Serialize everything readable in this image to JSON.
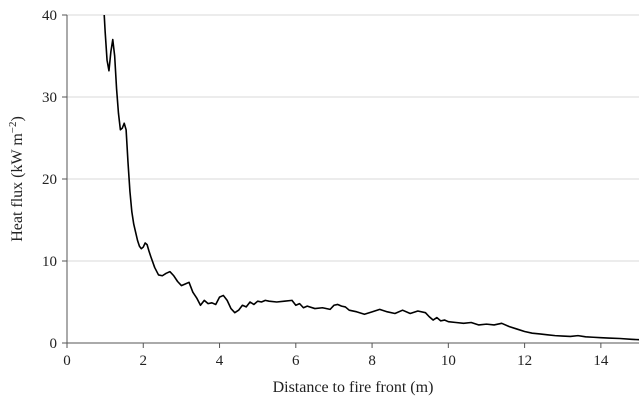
{
  "chart_data": {
    "type": "line",
    "xlabel": "Distance to fire front (m)",
    "ylabel": {
      "text": "Heat flux (kW m",
      "superscript": "−2",
      "close": ")"
    },
    "xlim": [
      0,
      15
    ],
    "ylim": [
      0,
      40
    ],
    "xticks": [
      0,
      2,
      4,
      6,
      8,
      10,
      12,
      14
    ],
    "yticks": [
      0,
      10,
      20,
      30,
      40
    ],
    "grid": "horizontal",
    "legend": "none",
    "colors": {
      "line": "#000000",
      "grid": "#d9d9d9",
      "axis": "#555555"
    },
    "series": [
      {
        "x": [
          0.97,
          1.0,
          1.05,
          1.1,
          1.15,
          1.2,
          1.25,
          1.3,
          1.35,
          1.4,
          1.45,
          1.5,
          1.55,
          1.6,
          1.65,
          1.7,
          1.75,
          1.8,
          1.85,
          1.9,
          1.95,
          2.0,
          2.05,
          2.1,
          2.15,
          2.2,
          2.3,
          2.4,
          2.5,
          2.6,
          2.7,
          2.8,
          2.9,
          3.0,
          3.1,
          3.2,
          3.3,
          3.4,
          3.5,
          3.6,
          3.7,
          3.8,
          3.9,
          4.0,
          4.1,
          4.2,
          4.3,
          4.4,
          4.5,
          4.6,
          4.7,
          4.8,
          4.9,
          5.0,
          5.1,
          5.2,
          5.3,
          5.5,
          5.7,
          5.9,
          6.0,
          6.1,
          6.2,
          6.3,
          6.5,
          6.7,
          6.9,
          7.0,
          7.1,
          7.2,
          7.3,
          7.4,
          7.6,
          7.8,
          8.0,
          8.2,
          8.4,
          8.6,
          8.8,
          9.0,
          9.2,
          9.4,
          9.5,
          9.6,
          9.7,
          9.8,
          9.9,
          10.0,
          10.2,
          10.4,
          10.6,
          10.8,
          11.0,
          11.2,
          11.4,
          11.6,
          11.8,
          12.0,
          12.2,
          12.4,
          12.6,
          12.8,
          13.0,
          13.2,
          13.4,
          13.6,
          13.8,
          14.0,
          14.2,
          14.5,
          14.8,
          15.0
        ],
        "y": [
          40.5,
          38.0,
          34.5,
          33.2,
          35.5,
          37.0,
          35.0,
          31.0,
          28.0,
          26.0,
          26.2,
          26.8,
          26.0,
          22.0,
          18.5,
          16.0,
          14.5,
          13.5,
          12.5,
          11.8,
          11.5,
          11.7,
          12.2,
          12.0,
          11.2,
          10.5,
          9.2,
          8.3,
          8.2,
          8.5,
          8.7,
          8.2,
          7.5,
          7.0,
          7.2,
          7.4,
          6.2,
          5.5,
          4.6,
          5.2,
          4.8,
          4.9,
          4.7,
          5.6,
          5.8,
          5.2,
          4.2,
          3.7,
          4.0,
          4.6,
          4.4,
          5.0,
          4.7,
          5.1,
          5.0,
          5.2,
          5.1,
          5.0,
          5.1,
          5.2,
          4.6,
          4.8,
          4.3,
          4.5,
          4.2,
          4.3,
          4.1,
          4.6,
          4.7,
          4.5,
          4.4,
          4.0,
          3.8,
          3.5,
          3.8,
          4.1,
          3.8,
          3.6,
          4.0,
          3.6,
          3.9,
          3.7,
          3.2,
          2.8,
          3.1,
          2.7,
          2.8,
          2.6,
          2.5,
          2.4,
          2.5,
          2.2,
          2.3,
          2.2,
          2.4,
          2.0,
          1.7,
          1.4,
          1.2,
          1.1,
          1.0,
          0.9,
          0.85,
          0.8,
          0.9,
          0.75,
          0.7,
          0.65,
          0.6,
          0.55,
          0.45,
          0.4
        ]
      }
    ]
  }
}
